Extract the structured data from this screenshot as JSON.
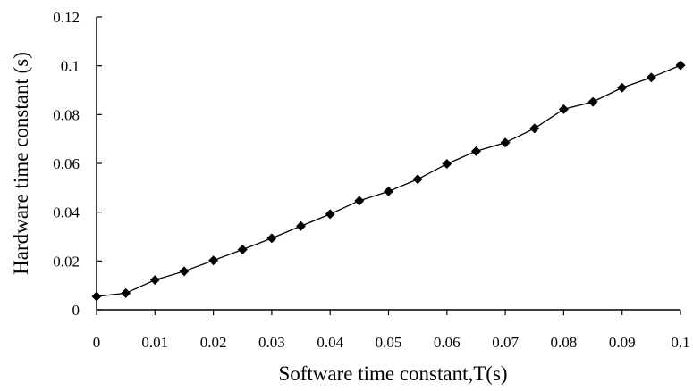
{
  "chart_data": {
    "type": "line",
    "xlabel": "Software time constant,T(s)",
    "ylabel": "Hardware time constant (s)",
    "xlim": [
      0,
      0.1
    ],
    "ylim": [
      0,
      0.12
    ],
    "x_tick_labels": [
      "0",
      "0.01",
      "0.02",
      "0.03",
      "0.04",
      "0.05",
      "0.06",
      "0.07",
      "0.08",
      "0.09",
      "0.1"
    ],
    "y_tick_labels": [
      "0",
      "0.02",
      "0.04",
      "0.06",
      "0.08",
      "0.1",
      "0.12"
    ],
    "grid": false,
    "marker": "diamond",
    "series": [
      {
        "x": [
          0,
          0.005,
          0.01,
          0.015,
          0.02,
          0.025,
          0.03,
          0.035,
          0.04,
          0.045,
          0.05,
          0.055,
          0.06,
          0.065,
          0.07,
          0.075,
          0.08,
          0.085,
          0.09,
          0.095,
          0.1
        ],
        "y": [
          0.0055,
          0.0068,
          0.0122,
          0.0158,
          0.0202,
          0.0247,
          0.0293,
          0.0343,
          0.0392,
          0.0447,
          0.0485,
          0.0535,
          0.0598,
          0.065,
          0.0685,
          0.0743,
          0.0822,
          0.0852,
          0.091,
          0.0952,
          0.1002
        ]
      }
    ]
  }
}
